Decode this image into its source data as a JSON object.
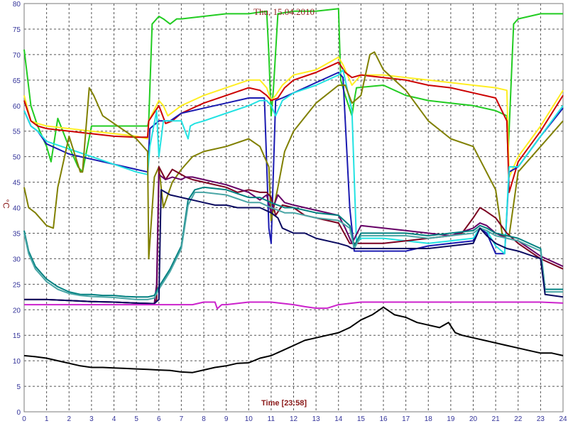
{
  "chart_data": {
    "type": "line",
    "title": "Thu, 15.04.2010",
    "xlabel": "Time [23:58]",
    "ylabel": "°C",
    "xlim": [
      0,
      24
    ],
    "ylim": [
      0,
      80
    ],
    "xticks": [
      0,
      1,
      2,
      3,
      4,
      5,
      6,
      7,
      8,
      9,
      10,
      11,
      12,
      13,
      14,
      15,
      16,
      17,
      18,
      19,
      20,
      21,
      22,
      23,
      24
    ],
    "yticks": [
      0,
      5,
      10,
      15,
      20,
      25,
      30,
      35,
      40,
      45,
      50,
      55,
      60,
      65,
      70,
      75,
      80
    ],
    "grid": true,
    "colors": {
      "grid": "#555555",
      "frame": "#7a7a7a",
      "axis_text": "#333399",
      "title": "#8b1a1a"
    },
    "series": [
      {
        "color": "#22cc22",
        "x": [
          0,
          0.3,
          0.6,
          1.0,
          1.2,
          1.5,
          1.9,
          2.4,
          2.6,
          3.0,
          4.0,
          5.0,
          5.5,
          5.55,
          5.7,
          6.0,
          6.2,
          6.5,
          6.8,
          7.0,
          8.0,
          9.0,
          10.0,
          10.8,
          10.9,
          11.0,
          11.1,
          11.3,
          12.0,
          13.0,
          14.0,
          14.1,
          14.3,
          14.6,
          14.7,
          14.8,
          16.0,
          17.0,
          18.0,
          19.0,
          20.0,
          21.0,
          21.5,
          21.55,
          21.8,
          22.0,
          23.0,
          24.0
        ],
        "y": [
          71,
          60,
          56,
          52,
          49,
          57.5,
          53,
          48,
          47,
          56,
          56,
          56,
          56,
          57,
          76,
          77.5,
          77,
          76,
          77,
          77,
          77.5,
          78,
          78,
          78.5,
          70,
          58,
          63,
          78,
          78.5,
          78.5,
          79,
          65,
          62,
          58,
          61,
          63.5,
          64,
          62,
          61,
          60.5,
          60,
          59,
          58,
          50,
          76,
          77,
          78,
          78
        ]
      },
      {
        "color": "#ffee22",
        "x": [
          0,
          0.3,
          0.6,
          1.0,
          2.0,
          3.0,
          4.0,
          5.0,
          5.5,
          5.55,
          6.0,
          6.2,
          6.4,
          7.0,
          8.0,
          9.0,
          10.0,
          10.5,
          10.8,
          11.0,
          11.2,
          11.5,
          12.0,
          13.0,
          14.0,
          14.2,
          14.5,
          14.6,
          15.0,
          16.0,
          17.0,
          18.0,
          19.0,
          20.0,
          21.0,
          21.5,
          21.6,
          22.0,
          23.0,
          24.0
        ],
        "y": [
          62,
          57,
          56.5,
          56,
          55.5,
          55,
          54.5,
          54,
          53.5,
          57,
          61,
          60,
          58,
          60,
          62,
          63.5,
          65,
          65,
          63.5,
          61,
          62,
          64,
          66,
          67,
          69.5,
          68,
          65,
          64,
          66,
          66,
          65.5,
          65,
          64.5,
          64,
          63.5,
          63,
          46,
          50,
          56,
          63
        ]
      },
      {
        "color": "#cc0000",
        "x": [
          0,
          0.3,
          0.6,
          1.0,
          2.0,
          3.0,
          4.0,
          5.0,
          5.5,
          5.55,
          6.0,
          6.3,
          6.6,
          7.0,
          8.0,
          9.0,
          10.0,
          10.5,
          10.8,
          11.0,
          11.3,
          11.6,
          12.0,
          13.0,
          14.0,
          14.3,
          14.6,
          15.0,
          16.0,
          17.0,
          18.0,
          19.0,
          20.0,
          21.0,
          21.5,
          21.6,
          22.0,
          23.0,
          24.0
        ],
        "y": [
          61,
          57,
          56,
          55.5,
          55,
          54.5,
          54,
          53.8,
          53.8,
          57,
          60,
          56.5,
          57,
          58.5,
          60.5,
          62,
          63.5,
          63,
          62,
          61,
          61.5,
          63.5,
          65,
          66.5,
          68.5,
          66.5,
          65.5,
          66,
          65.5,
          65,
          64,
          63.5,
          62.5,
          61.5,
          57,
          43,
          49,
          55,
          62
        ]
      },
      {
        "color": "#1a1ab0",
        "x": [
          0,
          0.3,
          0.6,
          1.0,
          2.0,
          3.0,
          4.0,
          5.0,
          5.5,
          5.6,
          6.0,
          6.5,
          7.0,
          8.0,
          9.0,
          10.0,
          10.7,
          10.9,
          11.0,
          11.2,
          11.5,
          12.0,
          13.0,
          14.0,
          14.2,
          14.5,
          14.7,
          15.0,
          16.0,
          17.0,
          18.0,
          19.0,
          20.0,
          20.3,
          20.6,
          21.0,
          21.4,
          21.6,
          22.0,
          23.0,
          24.0
        ],
        "y": [
          59,
          56,
          55,
          52.5,
          50.5,
          49.5,
          48.5,
          47.5,
          47,
          55.5,
          57,
          57,
          58.5,
          59.5,
          60.5,
          61.5,
          61.5,
          36,
          33,
          61,
          61.5,
          62.5,
          64.5,
          66.5,
          65.5,
          40,
          31.5,
          31.5,
          31.5,
          31.5,
          32.5,
          33,
          33.5,
          36,
          35,
          31,
          31,
          47,
          48,
          54,
          59.5
        ]
      },
      {
        "color": "#22e2e2",
        "x": [
          0,
          0.3,
          0.6,
          1.0,
          2.0,
          3.0,
          4.0,
          5.0,
          5.5,
          5.6,
          5.9,
          6.0,
          6.2,
          6.5,
          7.0,
          7.3,
          7.4,
          7.6,
          8.0,
          9.0,
          10.0,
          10.5,
          10.8,
          11.0,
          11.2,
          11.5,
          12.0,
          13.0,
          14.0,
          14.2,
          14.6,
          14.8,
          15.0,
          16.0,
          17.0,
          18.0,
          19.0,
          20.0,
          20.3,
          20.6,
          21.0,
          21.4,
          21.6,
          22.0,
          23.0,
          24.0
        ],
        "y": [
          59,
          56,
          55,
          53,
          51.5,
          50,
          48.5,
          47,
          46.5,
          52,
          59,
          50,
          57,
          57,
          57,
          53.5,
          56,
          56.5,
          57,
          58.5,
          60,
          61,
          61,
          60,
          58,
          61,
          62.5,
          64,
          66,
          67,
          59,
          33,
          34,
          34,
          33.5,
          33,
          33.5,
          34,
          36,
          35.5,
          32.5,
          31,
          48,
          48,
          54,
          60
        ]
      },
      {
        "color": "#808000",
        "x": [
          0,
          0.2,
          0.5,
          1.0,
          1.3,
          1.5,
          2.0,
          2.5,
          2.6,
          2.9,
          3.1,
          3.5,
          4.0,
          4.5,
          5.0,
          5.5,
          5.55,
          5.8,
          6.0,
          6.2,
          6.6,
          7.0,
          7.5,
          8.0,
          9.0,
          10.0,
          10.5,
          10.9,
          11.0,
          11.3,
          11.6,
          12.0,
          13.0,
          14.0,
          14.3,
          14.6,
          15.0,
          15.4,
          15.6,
          16.0,
          17.0,
          18.0,
          19.0,
          20.0,
          21.0,
          21.3,
          21.6,
          22.0,
          23.0,
          24.0
        ],
        "y": [
          44,
          40,
          39,
          36.5,
          36,
          44,
          54,
          47,
          47,
          63.5,
          62,
          58,
          56.5,
          55,
          53.5,
          51,
          30,
          46,
          48,
          40,
          45,
          47.5,
          50,
          51,
          52,
          53.5,
          52,
          48,
          37.5,
          44,
          51,
          55,
          60.5,
          64,
          64,
          60.5,
          62,
          70,
          70.5,
          67,
          63,
          57,
          53.5,
          52,
          43.5,
          34.5,
          34.5,
          47,
          52,
          57
        ]
      },
      {
        "color": "#7a0020",
        "x": [
          0,
          0.5,
          1,
          2,
          3,
          4,
          5,
          5.8,
          5.9,
          6.0,
          6.3,
          6.6,
          7.0,
          7.2,
          7.5,
          8.0,
          9.0,
          9.5,
          10.0,
          10.5,
          10.8,
          11.0,
          11.2,
          11.5,
          12.0,
          12.5,
          13.0,
          14.0,
          14.5,
          15.0,
          16.0,
          17.0,
          18.0,
          19.0,
          19.5,
          20.0,
          20.3,
          20.5,
          21.0,
          21.5,
          22.0,
          23.0,
          24.0
        ],
        "y": [
          22,
          22,
          22,
          21.8,
          21.6,
          21.5,
          21.3,
          21.2,
          22,
          48,
          45.5,
          47.5,
          46.5,
          46,
          45.5,
          45,
          44,
          43,
          43.5,
          43,
          43,
          42,
          38.5,
          40.5,
          40,
          38.5,
          38,
          37,
          33,
          33,
          33,
          33.5,
          34,
          34.5,
          35,
          38,
          40,
          39.5,
          38,
          35,
          33,
          30,
          28
        ]
      },
      {
        "color": "#660066",
        "x": [
          0,
          0.5,
          1,
          2,
          3,
          4,
          5,
          5.8,
          5.9,
          6.0,
          6.3,
          6.6,
          7.0,
          7.2,
          7.5,
          8.0,
          9.0,
          10.0,
          10.5,
          10.8,
          11.0,
          11.3,
          11.6,
          12.0,
          13.0,
          14.0,
          14.3,
          14.6,
          15.0,
          16.0,
          17.0,
          18.0,
          19.0,
          20.0,
          20.3,
          20.6,
          21.0,
          21.5,
          22.0,
          23.0,
          24.0
        ],
        "y": [
          22,
          22,
          22,
          21.8,
          21.6,
          21.5,
          21.3,
          21.2,
          25,
          46.5,
          45.5,
          46,
          45.5,
          46,
          46,
          45.5,
          44.5,
          43,
          41.5,
          42.5,
          39,
          42.5,
          41,
          40.5,
          39.5,
          38.5,
          36,
          33,
          36.5,
          36,
          35.5,
          35,
          34.5,
          36,
          37,
          36.5,
          35,
          34,
          33.5,
          30.5,
          28.5
        ]
      },
      {
        "color": "#008080",
        "x": [
          0,
          0.2,
          0.5,
          1.0,
          1.5,
          2.0,
          2.5,
          3.0,
          3.5,
          4.0,
          4.5,
          5.0,
          5.5,
          5.8,
          6.0,
          6.5,
          7.0,
          7.3,
          7.6,
          8.0,
          9.0,
          10.0,
          10.5,
          11.0,
          11.3,
          11.6,
          12.0,
          13.0,
          14.0,
          14.5,
          14.7,
          15.0,
          16.0,
          17.0,
          18.0,
          19.0,
          20.0,
          20.3,
          20.6,
          21.0,
          21.5,
          22.0,
          23.0,
          23.2,
          24.0
        ],
        "y": [
          35.5,
          31.5,
          28.5,
          26,
          24.5,
          23.5,
          23,
          23,
          22.8,
          22.8,
          22.6,
          22.5,
          22.5,
          22.8,
          24.5,
          28,
          32.5,
          41.5,
          43.5,
          44,
          43.5,
          42,
          42,
          41,
          40.5,
          40,
          40,
          39,
          38.5,
          36.5,
          32.5,
          35,
          35,
          35,
          34.5,
          35,
          35.5,
          36.5,
          36,
          35,
          34.5,
          34,
          32,
          24,
          24
        ]
      },
      {
        "color": "#4aa6a6",
        "x": [
          0,
          0.2,
          0.5,
          1.0,
          1.5,
          2.0,
          2.5,
          3.0,
          3.5,
          4.0,
          4.5,
          5.0,
          5.5,
          5.8,
          6.0,
          6.5,
          7.0,
          7.3,
          7.6,
          8.0,
          9.0,
          10.0,
          10.5,
          11.0,
          11.3,
          11.6,
          12.0,
          13.0,
          14.0,
          14.5,
          14.7,
          15.0,
          16.0,
          17.0,
          18.0,
          19.0,
          20.0,
          20.3,
          20.6,
          21.0,
          21.5,
          22.0,
          23.0,
          23.2,
          24.0
        ],
        "y": [
          35,
          31,
          28,
          25.5,
          24,
          23.2,
          22.8,
          22.6,
          22.5,
          22.4,
          22.2,
          22,
          22,
          22.3,
          24,
          27.5,
          32,
          40.5,
          43,
          43,
          42.5,
          41,
          41,
          40,
          39.5,
          39,
          39,
          38,
          37.5,
          36,
          32,
          34.5,
          34.5,
          34.5,
          34,
          34.5,
          35,
          36,
          35.5,
          34.5,
          34,
          33.5,
          31.5,
          23.5,
          23.5
        ]
      },
      {
        "color": "#0a0a60",
        "x": [
          0,
          0.5,
          1,
          2,
          3,
          4,
          5,
          5.8,
          6.0,
          6.1,
          6.5,
          7.0,
          7.5,
          8.0,
          8.5,
          9.0,
          9.5,
          10.0,
          10.5,
          11.0,
          11.3,
          11.5,
          12.0,
          12.5,
          13.0,
          14.0,
          14.4,
          14.6,
          15.0,
          16.0,
          17.0,
          18.0,
          19.0,
          20.0,
          20.3,
          20.6,
          21.0,
          21.5,
          22.0,
          23.0,
          23.2,
          24.0
        ],
        "y": [
          22,
          22,
          22,
          21.8,
          21.6,
          21.5,
          21.3,
          21.2,
          22,
          43.5,
          42.5,
          42,
          41.5,
          41,
          40.5,
          40.5,
          40,
          40,
          40,
          39,
          38,
          36,
          35,
          35,
          34,
          33,
          32.5,
          32,
          32,
          32,
          32,
          32,
          32.5,
          33,
          36,
          34.5,
          33,
          32,
          31.5,
          30,
          23,
          22.5
        ]
      },
      {
        "color": "#cc22cc",
        "x": [
          0,
          0.5,
          1,
          2,
          3,
          4,
          5,
          5.5,
          6,
          6.5,
          7,
          7.5,
          8,
          8.5,
          8.6,
          8.8,
          9,
          10,
          11,
          12,
          12.5,
          13,
          13.5,
          14,
          15,
          16,
          17,
          18,
          19,
          20,
          21,
          22,
          23,
          24
        ],
        "y": [
          21,
          21,
          21,
          21,
          21,
          21,
          21,
          21,
          21,
          21,
          21,
          21,
          21.5,
          21.5,
          20.2,
          21,
          21,
          21.5,
          21.5,
          21,
          20.6,
          20.3,
          20.3,
          21,
          21.5,
          21.5,
          21.5,
          21.5,
          21.5,
          21.5,
          21.5,
          21.5,
          21.5,
          21.3
        ]
      },
      {
        "color": "#000000",
        "x": [
          0,
          0.5,
          1,
          1.5,
          2,
          2.5,
          3,
          3.5,
          4,
          4.5,
          5,
          5.5,
          6,
          6.5,
          7,
          7.5,
          8,
          8.5,
          9,
          9.5,
          10,
          10.5,
          11,
          11.5,
          12,
          12.5,
          13,
          13.5,
          14,
          14.5,
          15,
          15.5,
          16,
          16.5,
          17,
          17.5,
          18,
          18.5,
          18.9,
          19.2,
          19.5,
          20,
          20.5,
          21,
          21.5,
          22,
          22.5,
          23,
          23.5,
          24
        ],
        "y": [
          11,
          10.8,
          10.5,
          10,
          9.5,
          9,
          8.7,
          8.7,
          8.6,
          8.5,
          8.4,
          8.3,
          8.2,
          8.1,
          7.8,
          7.7,
          8.2,
          8.7,
          9,
          9.5,
          9.6,
          10.5,
          11,
          12,
          13,
          14,
          14.5,
          15,
          15.5,
          16.5,
          18,
          19,
          20.5,
          19,
          18.5,
          17.5,
          17,
          16.5,
          17.5,
          15.5,
          15,
          14.5,
          14,
          13.5,
          13,
          12.5,
          12,
          11.5,
          11.5,
          11
        ]
      }
    ]
  }
}
